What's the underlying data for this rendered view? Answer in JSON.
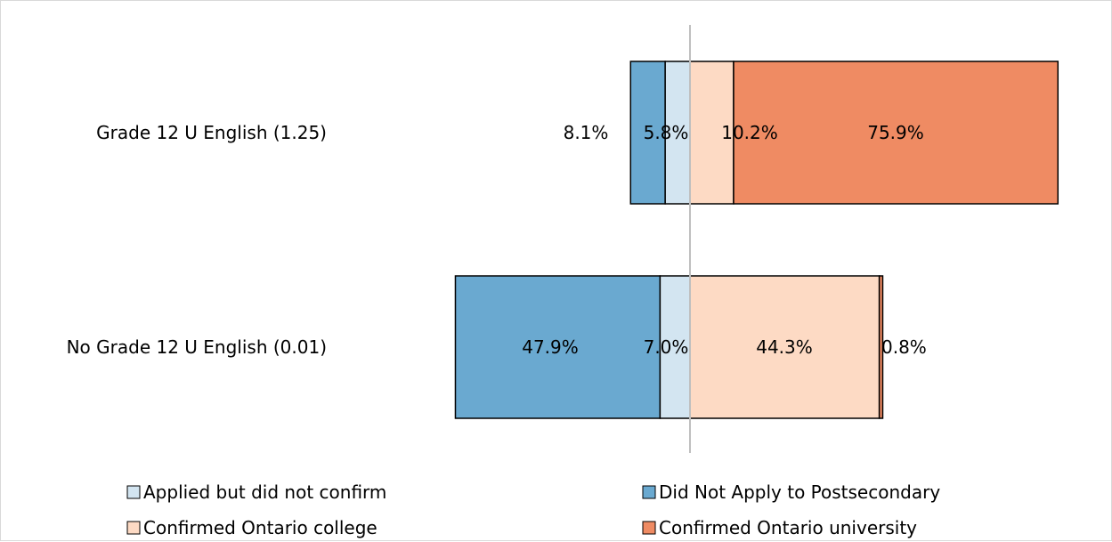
{
  "chart_data": {
    "type": "bar",
    "orientation": "horizontal",
    "stacked": true,
    "diverging": true,
    "title": "",
    "xlabel": "",
    "ylabel": "",
    "grid": false,
    "legend_position": "bottom",
    "categories": [
      "Grade 12 U English (1.25)",
      "No Grade 12 U English (0.01)"
    ],
    "series": [
      {
        "name": "Did Not Apply to Postsecondary",
        "side": "negative",
        "color": "#6aa9d0",
        "values": [
          8.1,
          47.9
        ],
        "labels": [
          "8.1%",
          "47.9%"
        ]
      },
      {
        "name": "Applied but did not confirm",
        "side": "negative",
        "color": "#d3e5f1",
        "values": [
          5.8,
          7.0
        ],
        "labels": [
          "5.8%",
          "7.0%"
        ]
      },
      {
        "name": "Confirmed Ontario college",
        "side": "positive",
        "color": "#fddac4",
        "values": [
          10.2,
          44.3
        ],
        "labels": [
          "10.2%",
          "44.3%"
        ]
      },
      {
        "name": "Confirmed Ontario university",
        "side": "positive",
        "color": "#ef8b63",
        "values": [
          75.9,
          0.8
        ],
        "labels": [
          "75.9%",
          "0.8%"
        ]
      }
    ],
    "legend": [
      {
        "label": "Applied but did not confirm",
        "color": "#d3e5f1"
      },
      {
        "label": "Did Not Apply to Postsecondary",
        "color": "#6aa9d0"
      },
      {
        "label": "Confirmed Ontario college",
        "color": "#fddac4"
      },
      {
        "label": "Confirmed Ontario university",
        "color": "#ef8b63"
      }
    ]
  }
}
